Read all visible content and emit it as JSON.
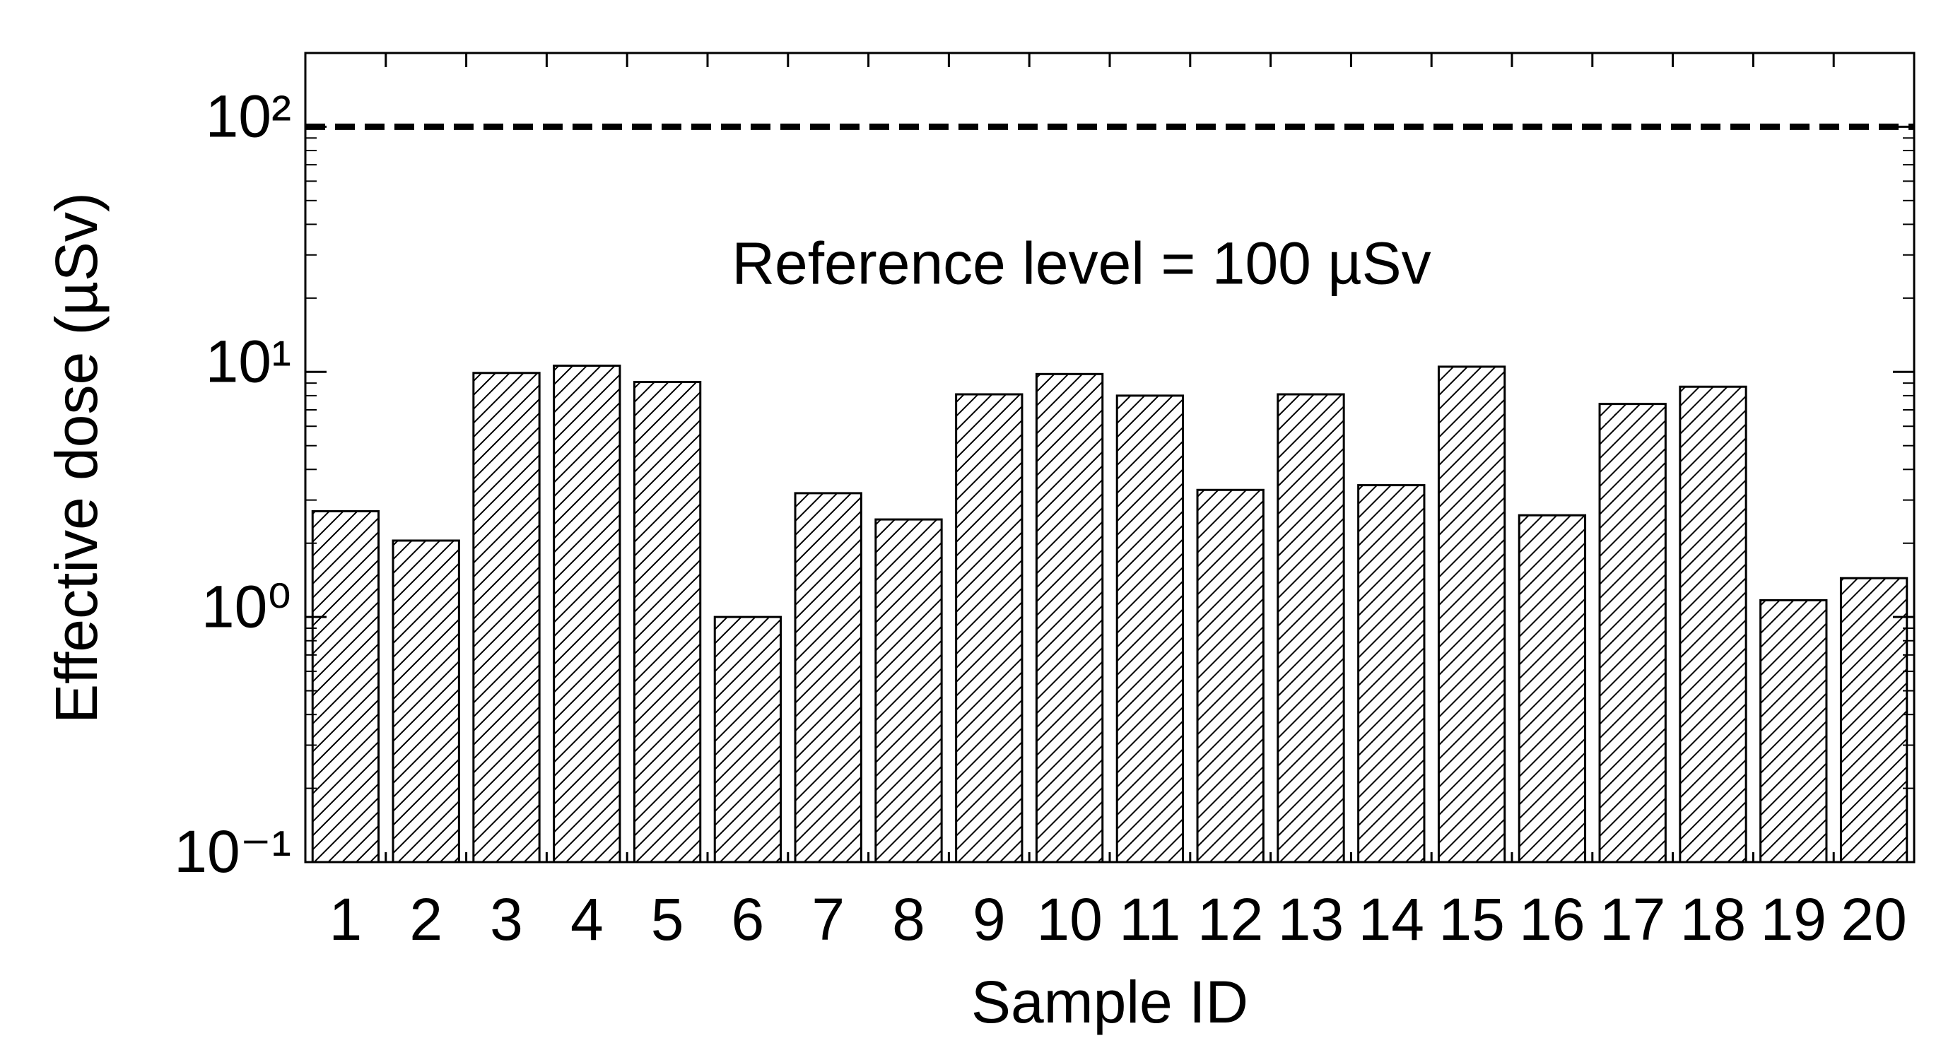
{
  "chart_data": {
    "type": "bar",
    "x_label": "Sample ID",
    "y_label": "Effective dose (µSv)",
    "categories": [
      "1",
      "2",
      "3",
      "4",
      "5",
      "6",
      "7",
      "8",
      "9",
      "10",
      "11",
      "12",
      "13",
      "14",
      "15",
      "16",
      "17",
      "18",
      "19",
      "20"
    ],
    "values": [
      2.7,
      2.05,
      9.9,
      10.6,
      9.1,
      1.0,
      3.2,
      2.5,
      8.1,
      9.8,
      8.0,
      3.3,
      8.1,
      3.45,
      10.5,
      2.6,
      7.4,
      8.7,
      1.17,
      1.44
    ],
    "color": "#000000",
    "log_scale": true,
    "ylim": [
      0.1,
      200
    ],
    "yticks": [
      {
        "value": 0.1,
        "label": "10⁻¹"
      },
      {
        "value": 1,
        "label": "10⁰"
      },
      {
        "value": 10,
        "label": "10¹"
      },
      {
        "value": 100,
        "label": "10²"
      }
    ],
    "reference_line": {
      "value": 100,
      "label": "Reference level = 100 µSv"
    }
  }
}
